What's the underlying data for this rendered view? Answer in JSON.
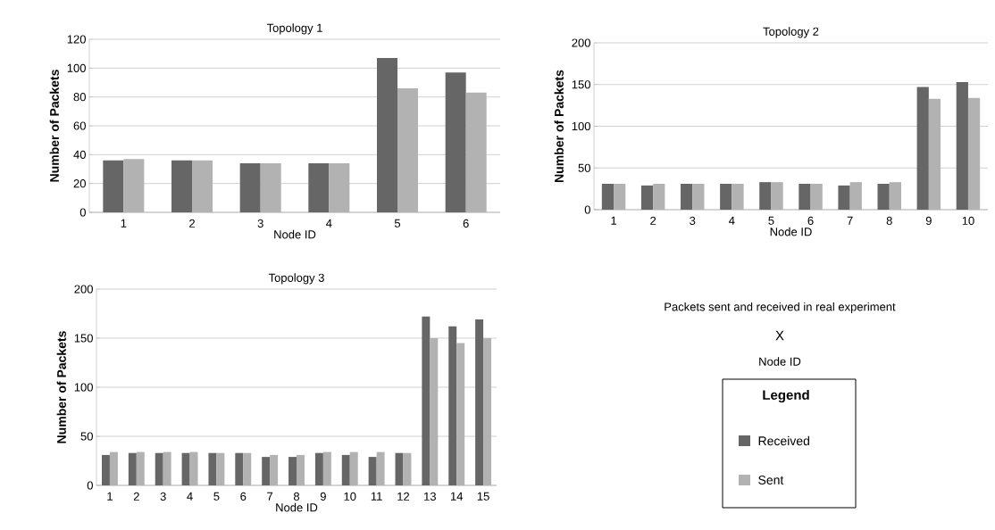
{
  "chart_data": [
    {
      "type": "bar",
      "title": "Topology 1",
      "xlabel": "Node ID",
      "ylabel": "Number of Packets",
      "categories": [
        "1",
        "2",
        "3",
        "4",
        "5",
        "6"
      ],
      "series": [
        {
          "color": "#666666",
          "values": [
            36,
            36,
            34,
            34,
            107,
            97
          ]
        },
        {
          "color": "#b2b2b2",
          "values": [
            37,
            36,
            34,
            34,
            86,
            83
          ]
        }
      ],
      "ylim": [
        0,
        120
      ],
      "yticks": [
        0,
        20,
        40,
        60,
        80,
        100,
        120
      ],
      "grid": "y"
    },
    {
      "type": "bar",
      "title": "Topology 2",
      "xlabel": "Node ID",
      "ylabel": "Number of Packets",
      "categories": [
        "1",
        "2",
        "3",
        "4",
        "5",
        "6",
        "7",
        "8",
        "9",
        "10"
      ],
      "series": [
        {
          "color": "#666666",
          "values": [
            31,
            29,
            31,
            31,
            33,
            31,
            29,
            31,
            147,
            153
          ]
        },
        {
          "color": "#b2b2b2",
          "values": [
            31,
            31,
            31,
            31,
            33,
            31,
            33,
            33,
            133,
            134
          ]
        }
      ],
      "ylim": [
        0,
        200
      ],
      "yticks": [
        0,
        50,
        100,
        150,
        200
      ],
      "grid": "y"
    },
    {
      "type": "bar",
      "title": "Topology 3",
      "xlabel": "Node ID",
      "ylabel": "Number of Packets",
      "categories": [
        "1",
        "2",
        "3",
        "4",
        "5",
        "6",
        "7",
        "8",
        "9",
        "10",
        "11",
        "12",
        "13",
        "14",
        "15"
      ],
      "series": [
        {
          "color": "#666666",
          "values": [
            31,
            33,
            33,
            33,
            33,
            33,
            29,
            29,
            33,
            31,
            29,
            33,
            172,
            162,
            169
          ]
        },
        {
          "color": "#b2b2b2",
          "values": [
            34,
            34,
            34,
            34,
            33,
            33,
            31,
            31,
            34,
            34,
            34,
            33,
            150,
            145,
            150
          ]
        }
      ],
      "ylim": [
        0,
        200
      ],
      "yticks": [
        0,
        50,
        100,
        150,
        200
      ],
      "grid": "y"
    },
    {
      "type": "other",
      "title": "Packets sent and received in real experiment",
      "annotations": [
        "X",
        "Node ID"
      ],
      "legend_title": "Legend",
      "series": [
        {
          "name": "Received",
          "color": "#666666"
        },
        {
          "name": "Sent",
          "color": "#b2b2b2"
        }
      ]
    }
  ]
}
